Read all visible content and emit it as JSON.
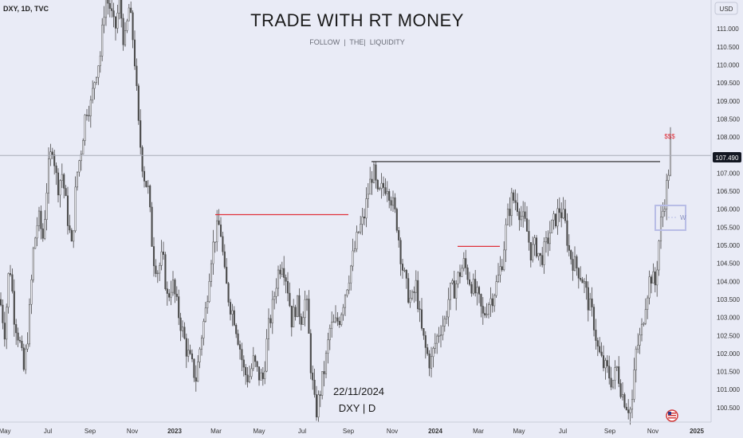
{
  "header": {
    "symbol_label": "DXY, 1D, TVC",
    "title": "TRADE WITH RT MONEY",
    "subtitle": "FOLLOW  |  THE|  LIQUIDITY",
    "currency_label": "USD"
  },
  "annotations": {
    "date_text": "22/11/2024",
    "instrument_text": "DXY | D",
    "liquidity_label": "$$$",
    "box_label": "W"
  },
  "colors": {
    "background": "#e9ebf6",
    "candles": "#4a4a4a",
    "red_line": "#e0303a",
    "black_line": "#222222",
    "price_tag_bg": "#131722",
    "box_stroke": "#b8bde6"
  },
  "chart_data": {
    "type": "candlestick",
    "y_axis": {
      "range": [
        100.1,
        111.8
      ],
      "ticks": [
        "100.500",
        "101.000",
        "101.500",
        "102.000",
        "102.500",
        "103.000",
        "103.500",
        "104.000",
        "104.500",
        "105.000",
        "105.500",
        "106.000",
        "106.500",
        "107.000",
        "107.500",
        "108.000",
        "108.500",
        "109.000",
        "109.500",
        "110.000",
        "110.500",
        "111.000"
      ]
    },
    "x_axis": {
      "ticks": [
        "May",
        "Jul",
        "Sep",
        "Nov",
        "2023",
        "Mar",
        "May",
        "Jul",
        "Sep",
        "Nov",
        "2024",
        "Mar",
        "May",
        "Jul",
        "Sep",
        "Nov",
        "2025"
      ]
    },
    "current_price": "107.490",
    "path_points": [
      [
        0,
        103.5
      ],
      [
        6,
        102.6
      ],
      [
        12,
        104.6
      ],
      [
        18,
        103.0
      ],
      [
        24,
        102.4
      ],
      [
        30,
        101.5
      ],
      [
        36,
        102.8
      ],
      [
        42,
        104.9
      ],
      [
        48,
        105.8
      ],
      [
        54,
        105.2
      ],
      [
        60,
        107.0
      ],
      [
        66,
        107.8
      ],
      [
        72,
        106.6
      ],
      [
        78,
        107.0
      ],
      [
        84,
        105.9
      ],
      [
        90,
        104.9
      ],
      [
        96,
        106.9
      ],
      [
        102,
        107.7
      ],
      [
        108,
        108.8
      ],
      [
        114,
        108.9
      ],
      [
        120,
        109.8
      ],
      [
        126,
        110.3
      ],
      [
        132,
        111.9
      ],
      [
        138,
        111.6
      ],
      [
        144,
        110.9
      ],
      [
        150,
        111.8
      ],
      [
        156,
        110.5
      ],
      [
        162,
        111.6
      ],
      [
        168,
        110.5
      ],
      [
        174,
        108.2
      ],
      [
        180,
        107.0
      ],
      [
        186,
        106.5
      ],
      [
        192,
        104.7
      ],
      [
        198,
        104.3
      ],
      [
        204,
        104.7
      ],
      [
        210,
        103.5
      ],
      [
        216,
        104.0
      ],
      [
        222,
        103.3
      ],
      [
        228,
        102.7
      ],
      [
        234,
        102.1
      ],
      [
        240,
        101.7
      ],
      [
        246,
        101.3
      ],
      [
        252,
        102.4
      ],
      [
        258,
        103.2
      ],
      [
        264,
        104.6
      ],
      [
        270,
        105.3
      ],
      [
        276,
        105.6
      ],
      [
        282,
        104.1
      ],
      [
        288,
        103.4
      ],
      [
        294,
        103.0
      ],
      [
        300,
        102.3
      ],
      [
        306,
        101.5
      ],
      [
        312,
        101.3
      ],
      [
        318,
        101.8
      ],
      [
        324,
        101.4
      ],
      [
        330,
        101.3
      ],
      [
        336,
        102.6
      ],
      [
        342,
        103.3
      ],
      [
        348,
        104.2
      ],
      [
        354,
        104.6
      ],
      [
        360,
        104.0
      ],
      [
        366,
        102.9
      ],
      [
        372,
        103.4
      ],
      [
        378,
        103.0
      ],
      [
        384,
        103.6
      ],
      [
        390,
        101.6
      ],
      [
        396,
        100.3
      ],
      [
        402,
        101.0
      ],
      [
        408,
        101.7
      ],
      [
        414,
        102.7
      ],
      [
        420,
        102.8
      ],
      [
        426,
        103.0
      ],
      [
        432,
        103.6
      ],
      [
        438,
        104.2
      ],
      [
        444,
        104.8
      ],
      [
        450,
        105.4
      ],
      [
        456,
        105.7
      ],
      [
        462,
        106.5
      ],
      [
        468,
        107.1
      ],
      [
        474,
        106.3
      ],
      [
        480,
        106.6
      ],
      [
        486,
        106.7
      ],
      [
        492,
        106.2
      ],
      [
        498,
        105.6
      ],
      [
        504,
        104.5
      ],
      [
        510,
        103.8
      ],
      [
        516,
        103.4
      ],
      [
        522,
        103.9
      ],
      [
        528,
        102.7
      ],
      [
        534,
        102.1
      ],
      [
        540,
        101.7
      ],
      [
        546,
        102.3
      ],
      [
        552,
        102.7
      ],
      [
        558,
        102.9
      ],
      [
        564,
        103.7
      ],
      [
        570,
        103.8
      ],
      [
        576,
        104.2
      ],
      [
        582,
        104.5
      ],
      [
        588,
        104.1
      ],
      [
        594,
        103.8
      ],
      [
        600,
        103.5
      ],
      [
        606,
        103.0
      ],
      [
        612,
        103.4
      ],
      [
        618,
        103.6
      ],
      [
        624,
        104.0
      ],
      [
        630,
        104.6
      ],
      [
        636,
        105.7
      ],
      [
        642,
        106.3
      ],
      [
        648,
        106.2
      ],
      [
        654,
        105.8
      ],
      [
        660,
        105.5
      ],
      [
        666,
        104.8
      ],
      [
        672,
        105.0
      ],
      [
        678,
        104.6
      ],
      [
        684,
        104.9
      ],
      [
        690,
        105.4
      ],
      [
        696,
        105.7
      ],
      [
        702,
        106.0
      ],
      [
        708,
        105.7
      ],
      [
        714,
        104.8
      ],
      [
        720,
        104.5
      ],
      [
        726,
        104.3
      ],
      [
        732,
        104.0
      ],
      [
        738,
        103.4
      ],
      [
        744,
        103.0
      ],
      [
        750,
        102.1
      ],
      [
        756,
        101.7
      ],
      [
        762,
        101.5
      ],
      [
        768,
        101.2
      ],
      [
        774,
        101.6
      ],
      [
        780,
        100.9
      ],
      [
        786,
        100.6
      ],
      [
        792,
        100.4
      ],
      [
        798,
        102.1
      ],
      [
        804,
        102.5
      ],
      [
        810,
        103.5
      ],
      [
        816,
        104.2
      ],
      [
        822,
        103.9
      ],
      [
        828,
        105.5
      ],
      [
        834,
        106.3
      ],
      [
        838,
        106.9
      ],
      [
        841,
        107.8
      ]
    ],
    "levels": [
      {
        "id": "red-level-1",
        "price": 105.85,
        "from_x": 270,
        "to_x": 437,
        "color": "red"
      },
      {
        "id": "black-level",
        "price": 107.32,
        "from_x": 466,
        "to_x": 828,
        "color": "black"
      },
      {
        "id": "red-level-2",
        "price": 104.97,
        "from_x": 574,
        "to_x": 627,
        "color": "red"
      }
    ]
  }
}
